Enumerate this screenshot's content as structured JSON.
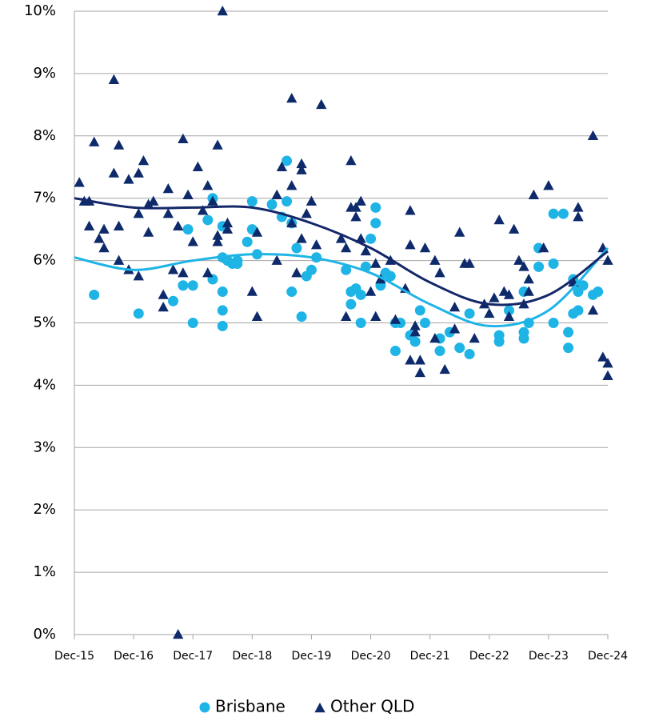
{
  "chart_data": {
    "type": "scatter",
    "xlim": [
      "Dec-15",
      "Dec-24"
    ],
    "xticks": [
      "Dec-15",
      "Dec-16",
      "Dec-17",
      "Dec-18",
      "Dec-19",
      "Dec-20",
      "Dec-21",
      "Dec-22",
      "Dec-23",
      "Dec-24"
    ],
    "ylim": [
      0,
      10
    ],
    "yticks": [
      {
        "value": 0,
        "label": "0%"
      },
      {
        "value": 1,
        "label": "1%"
      },
      {
        "value": 2,
        "label": "2%"
      },
      {
        "value": 3,
        "label": "3%"
      },
      {
        "value": 4,
        "label": "4%"
      },
      {
        "value": 5,
        "label": "5%"
      },
      {
        "value": 6,
        "label": "6%"
      },
      {
        "value": 7,
        "label": "7%"
      },
      {
        "value": 8,
        "label": "8%"
      },
      {
        "value": 9,
        "label": "9%"
      },
      {
        "value": 10,
        "label": "10%"
      }
    ],
    "grid": true,
    "legend": "bottom",
    "series": [
      {
        "name": "Brisbane",
        "color": "#1fb4e6",
        "marker": "circle",
        "x": [
          "Apr-16",
          "Jan-17",
          "Aug-17",
          "Oct-17",
          "Nov-17",
          "Dec-17",
          "Dec-17",
          "Mar-18",
          "Apr-18",
          "Apr-18",
          "Jun-18",
          "Jun-18",
          "Jun-18",
          "Jun-18",
          "Jun-18",
          "Jul-18",
          "Aug-18",
          "Sep-18",
          "Sep-18",
          "Nov-18",
          "Dec-18",
          "Dec-18",
          "Jan-19",
          "Apr-19",
          "Jun-19",
          "Jul-19",
          "Jul-19",
          "Aug-19",
          "Aug-19",
          "Sep-19",
          "Oct-19",
          "Nov-19",
          "Dec-19",
          "Jan-20",
          "Jul-20",
          "Aug-20",
          "Aug-20",
          "Sep-20",
          "Oct-20",
          "Oct-20",
          "Nov-20",
          "Dec-20",
          "Jan-21",
          "Jan-21",
          "Feb-21",
          "Mar-21",
          "Apr-21",
          "May-21",
          "May-21",
          "Jun-21",
          "Aug-21",
          "Sep-21",
          "Oct-21",
          "Nov-21",
          "Feb-22",
          "Feb-22",
          "Apr-22",
          "Jun-22",
          "Aug-22",
          "Aug-22",
          "Feb-23",
          "Feb-23",
          "Apr-23",
          "Jul-23",
          "Jul-23",
          "Jul-23",
          "Aug-23",
          "Oct-23",
          "Oct-23",
          "Jan-24",
          "Jan-24",
          "Jan-24",
          "Mar-24",
          "Apr-24",
          "Apr-24",
          "May-24",
          "May-24",
          "Jun-24",
          "Jun-24",
          "Jul-24",
          "Sep-24",
          "Oct-24"
        ],
        "values": [
          5.45,
          5.15,
          5.35,
          5.6,
          6.5,
          5.6,
          5.0,
          6.65,
          7.0,
          5.7,
          5.5,
          5.2,
          4.95,
          6.05,
          6.55,
          6.0,
          5.95,
          6.0,
          5.95,
          6.3,
          6.95,
          6.5,
          6.1,
          6.9,
          6.7,
          7.6,
          6.95,
          5.5,
          6.6,
          6.2,
          5.1,
          5.75,
          5.85,
          6.05,
          5.85,
          5.5,
          5.3,
          5.55,
          5.0,
          5.45,
          5.9,
          6.35,
          6.85,
          6.6,
          5.6,
          5.8,
          5.75,
          5.0,
          4.55,
          5.0,
          4.8,
          4.7,
          5.2,
          5.0,
          4.55,
          4.75,
          4.85,
          4.6,
          5.15,
          4.5,
          4.7,
          4.8,
          5.2,
          5.5,
          4.85,
          4.75,
          5.0,
          6.2,
          5.9,
          6.75,
          5.95,
          5.0,
          6.75,
          4.85,
          4.6,
          5.7,
          5.15,
          5.5,
          5.2,
          5.6,
          5.45,
          5.5
        ],
        "trend": {
          "color": "#1fb4e6",
          "x": [
            "Dec-15",
            "Dec-16",
            "Dec-17",
            "Dec-18",
            "Dec-19",
            "Dec-20",
            "Dec-21",
            "Dec-22",
            "Dec-23",
            "Dec-24"
          ],
          "values": [
            6.05,
            5.85,
            6.0,
            6.1,
            6.05,
            5.8,
            5.3,
            4.95,
            5.2,
            6.2
          ]
        }
      },
      {
        "name": "Other QLD",
        "color": "#0e2a6b",
        "marker": "triangle",
        "x": [
          "Jan-16",
          "Feb-16",
          "Mar-16",
          "Mar-16",
          "Apr-16",
          "May-16",
          "Jun-16",
          "Jun-16",
          "Aug-16",
          "Aug-16",
          "Sep-16",
          "Sep-16",
          "Sep-16",
          "Nov-16",
          "Nov-16",
          "Jan-17",
          "Jan-17",
          "Jan-17",
          "Feb-17",
          "Mar-17",
          "Mar-17",
          "Apr-17",
          "Jun-17",
          "Jun-17",
          "Jul-17",
          "Jul-17",
          "Aug-17",
          "Sep-17",
          "Sep-17",
          "Oct-17",
          "Oct-17",
          "Nov-17",
          "Dec-17",
          "Jan-18",
          "Feb-18",
          "Mar-18",
          "Mar-18",
          "Apr-18",
          "May-18",
          "May-18",
          "May-18",
          "Jun-18",
          "Jul-18",
          "Jul-18",
          "Dec-18",
          "Jan-19",
          "Jan-19",
          "May-19",
          "May-19",
          "Jun-19",
          "Aug-19",
          "Aug-19",
          "Aug-19",
          "Sep-19",
          "Oct-19",
          "Oct-19",
          "Oct-19",
          "Nov-19",
          "Dec-19",
          "Jan-20",
          "Feb-20",
          "Jun-20",
          "Jul-20",
          "Jul-20",
          "Aug-20",
          "Aug-20",
          "Sep-20",
          "Sep-20",
          "Oct-20",
          "Oct-20",
          "Nov-20",
          "Dec-20",
          "Jan-21",
          "Jan-21",
          "Feb-21",
          "Apr-21",
          "May-21",
          "Jul-21",
          "Aug-21",
          "Aug-21",
          "Aug-21",
          "Sep-21",
          "Sep-21",
          "Oct-21",
          "Oct-21",
          "Nov-21",
          "Jan-22",
          "Jan-22",
          "Feb-22",
          "Mar-22",
          "May-22",
          "May-22",
          "Jun-22",
          "Jul-22",
          "Aug-22",
          "Sep-22",
          "Nov-22",
          "Dec-22",
          "Jan-23",
          "Feb-23",
          "Mar-23",
          "Apr-23",
          "Apr-23",
          "May-23",
          "Jun-23",
          "Jul-23",
          "Jul-23",
          "Aug-23",
          "Aug-23",
          "Sep-23",
          "Nov-23",
          "Dec-23",
          "May-24",
          "Jun-24",
          "Jun-24",
          "Sep-24",
          "Sep-24",
          "Nov-24",
          "Nov-24",
          "Dec-24",
          "Dec-24",
          "Dec-24"
        ],
        "values": [
          7.25,
          6.95,
          6.55,
          6.95,
          7.9,
          6.35,
          6.5,
          6.2,
          7.4,
          8.9,
          6.55,
          6.0,
          7.85,
          5.85,
          7.3,
          5.75,
          7.4,
          6.75,
          7.6,
          6.45,
          6.9,
          6.95,
          5.45,
          5.25,
          6.75,
          7.15,
          5.85,
          0,
          6.55,
          7.95,
          5.8,
          7.05,
          6.3,
          7.5,
          6.8,
          7.2,
          5.8,
          6.95,
          7.85,
          6.4,
          6.3,
          10.0,
          6.6,
          6.5,
          5.5,
          6.45,
          5.1,
          7.05,
          6.0,
          7.5,
          6.6,
          7.2,
          8.6,
          5.8,
          7.45,
          7.55,
          6.35,
          6.75,
          6.95,
          6.25,
          8.5,
          6.35,
          5.1,
          6.2,
          7.6,
          6.85,
          6.7,
          6.85,
          6.95,
          6.35,
          6.15,
          5.5,
          5.1,
          5.95,
          5.7,
          6.0,
          5.05,
          5.55,
          6.8,
          6.25,
          4.4,
          4.95,
          4.85,
          4.2,
          4.4,
          6.2,
          4.75,
          6.0,
          5.8,
          4.25,
          4.9,
          5.25,
          6.45,
          5.95,
          5.95,
          4.75,
          5.3,
          5.15,
          5.4,
          6.65,
          5.5,
          5.45,
          5.1,
          6.5,
          6.0,
          5.9,
          5.3,
          5.5,
          5.7,
          7.05,
          6.2,
          7.2,
          5.65,
          6.85,
          6.7,
          5.2,
          8.0,
          6.2,
          4.45,
          6.0,
          4.35,
          4.15
        ],
        "trend": {
          "color": "#14286a",
          "x": [
            "Dec-15",
            "Dec-16",
            "Dec-17",
            "Dec-18",
            "Dec-19",
            "Dec-20",
            "Dec-21",
            "Dec-22",
            "Dec-23",
            "Dec-24"
          ],
          "values": [
            7.0,
            6.85,
            6.85,
            6.85,
            6.6,
            6.2,
            5.65,
            5.3,
            5.45,
            6.15
          ]
        }
      }
    ]
  }
}
